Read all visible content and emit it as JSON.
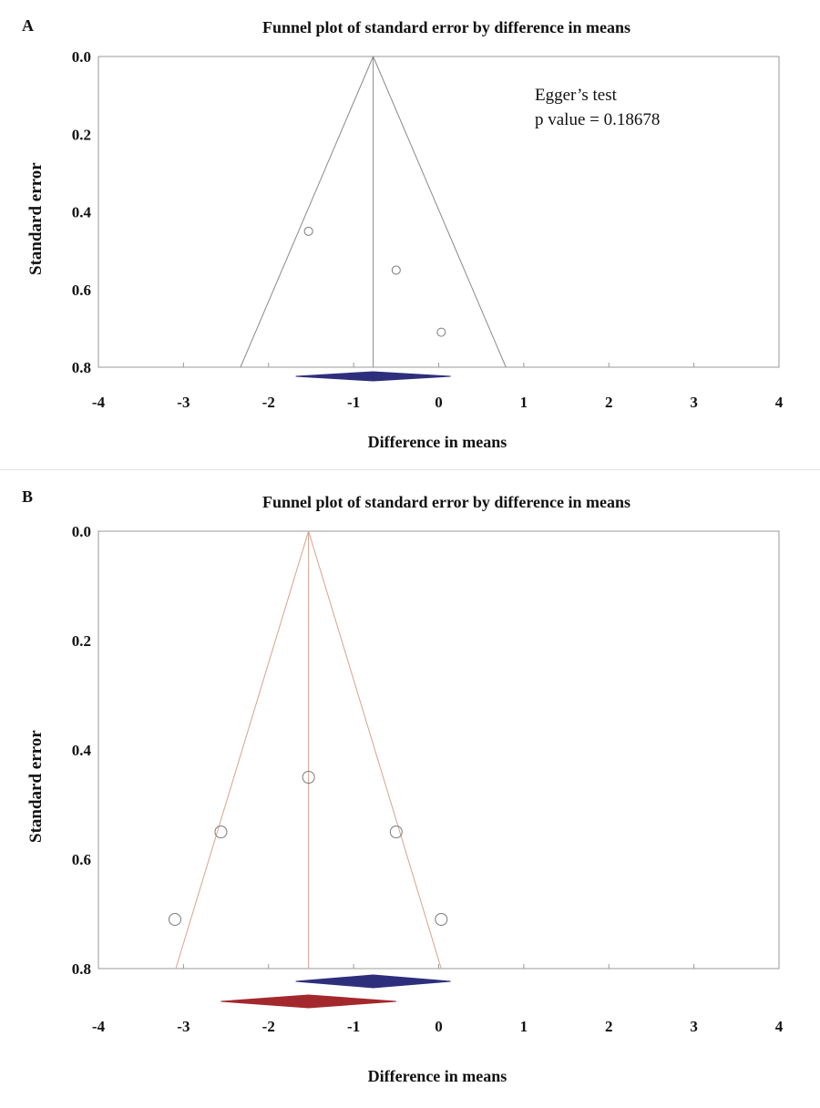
{
  "chart_data": [
    {
      "type": "scatter",
      "panel_label": "A",
      "title": "Funnel plot of standard error by difference in means",
      "xlabel": "Difference in means",
      "ylabel": "Standard error",
      "xlim": [
        -4,
        4
      ],
      "ylim": [
        0.0,
        0.8
      ],
      "y_inverted": true,
      "x_ticks": [
        "-4",
        "-3",
        "-2",
        "-1",
        "0",
        "1",
        "2",
        "3",
        "4"
      ],
      "y_ticks": [
        "0.0",
        "0.2",
        "0.4",
        "0.6",
        "0.8"
      ],
      "points": [
        {
          "x": -1.53,
          "y": 0.45
        },
        {
          "x": -0.5,
          "y": 0.55
        },
        {
          "x": 0.03,
          "y": 0.71
        }
      ],
      "pooled_estimate": -0.77,
      "funnel": {
        "apex": {
          "x": -0.77,
          "y": 0.0
        },
        "base": [
          {
            "x": -2.33,
            "y": 0.8
          },
          {
            "x": 0.79,
            "y": 0.8
          }
        ]
      },
      "diamonds": [
        {
          "center": -0.77,
          "lower": -1.68,
          "upper": 0.14,
          "color": "#2e2f7c"
        }
      ],
      "line_color": "#8a8a8a",
      "annotation": [
        "Egger’s test",
        "p value = 0.18678"
      ]
    },
    {
      "type": "scatter",
      "panel_label": "B",
      "title": "Funnel plot of standard error by difference in means",
      "xlabel": "Difference in means",
      "ylabel": "Standard error",
      "xlim": [
        -4,
        4
      ],
      "ylim": [
        0.0,
        0.8
      ],
      "y_inverted": true,
      "x_ticks": [
        "-4",
        "-3",
        "-2",
        "-1",
        "0",
        "1",
        "2",
        "3",
        "4"
      ],
      "y_ticks": [
        "0.0",
        "0.2",
        "0.4",
        "0.6",
        "0.8"
      ],
      "points": [
        {
          "x": -1.53,
          "y": 0.45
        },
        {
          "x": -2.56,
          "y": 0.55
        },
        {
          "x": -0.5,
          "y": 0.55
        },
        {
          "x": -3.1,
          "y": 0.71
        },
        {
          "x": 0.03,
          "y": 0.71
        }
      ],
      "pooled_estimate": -1.53,
      "funnel": {
        "apex": {
          "x": -1.53,
          "y": 0.0
        },
        "base": [
          {
            "x": -3.09,
            "y": 0.8
          },
          {
            "x": 0.03,
            "y": 0.8
          }
        ]
      },
      "diamonds": [
        {
          "center": -0.77,
          "lower": -1.68,
          "upper": 0.14,
          "color": "#2e2f7c"
        },
        {
          "center": -1.53,
          "lower": -2.56,
          "upper": -0.5,
          "color": "#a3282d"
        }
      ],
      "line_color": "#d9a28e",
      "annotation": []
    }
  ]
}
